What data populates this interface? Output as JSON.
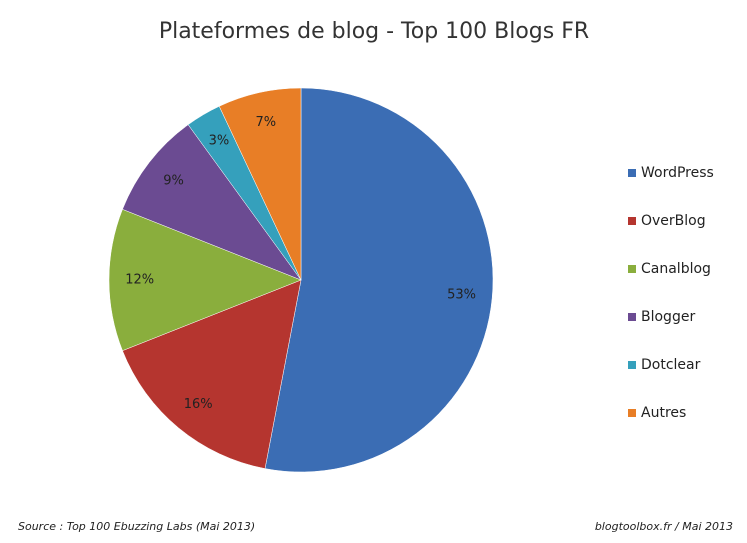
{
  "chart_data": {
    "type": "pie",
    "title": "Plateformes de blog - Top 100 Blogs FR",
    "categories": [
      "WordPress",
      "OverBlog",
      "Canalblog",
      "Blogger",
      "Dotclear",
      "Autres"
    ],
    "values": [
      53,
      16,
      12,
      9,
      3,
      7
    ],
    "value_labels": [
      "53%",
      "16%",
      "12%",
      "9%",
      "3%",
      "7%"
    ],
    "colors": [
      "#3b6db4",
      "#b5352f",
      "#8aae3d",
      "#6b4b92",
      "#35a0bc",
      "#e87e26"
    ],
    "legend": "right",
    "source": "Source : Top 100 Ebuzzing Labs (Mai 2013)",
    "credit": "blogtoolbox.fr  / Mai 2013"
  }
}
